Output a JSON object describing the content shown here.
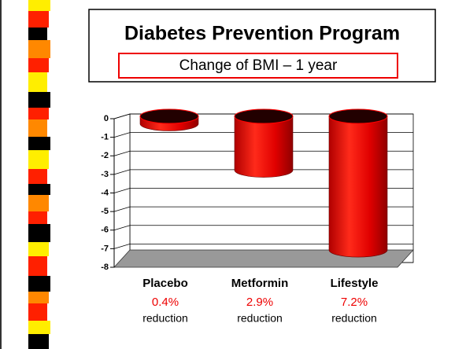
{
  "chart_data": {
    "type": "bar3d",
    "title": "Diabetes Prevention Program",
    "subtitle": "Change of BMI – 1 year",
    "categories": [
      "Placebo",
      "Metformin",
      "Lifestyle"
    ],
    "values": [
      -0.4,
      -2.9,
      -7.2
    ],
    "color": "#ff0000",
    "ylim": [
      -8,
      0
    ],
    "yticks": [
      0,
      -1,
      -2,
      -3,
      -4,
      -5,
      -6,
      -7,
      -8
    ],
    "grid": true,
    "notes": [
      {
        "percent": "0.4%",
        "text": "reduction"
      },
      {
        "percent": "2.9%",
        "text": "reduction"
      },
      {
        "percent": "7.2%",
        "text": "reduction"
      }
    ]
  }
}
